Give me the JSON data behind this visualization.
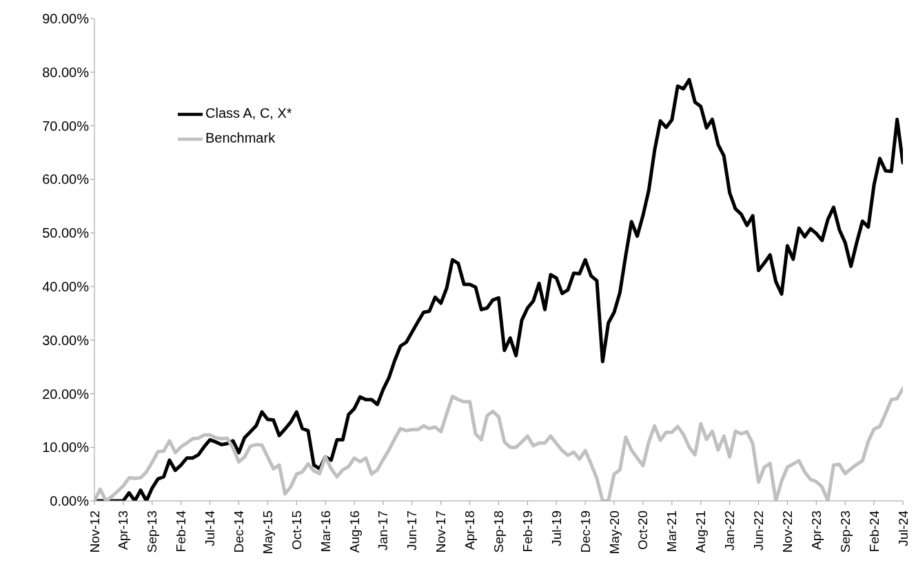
{
  "chart_data": {
    "type": "line",
    "categories": [
      "Nov-12",
      null,
      null,
      null,
      null,
      "Apr-13",
      null,
      null,
      null,
      null,
      "Sep-13",
      null,
      null,
      null,
      null,
      "Feb-14",
      null,
      null,
      null,
      null,
      "Jul-14",
      null,
      null,
      null,
      null,
      "Dec-14",
      null,
      null,
      null,
      null,
      "May-15",
      null,
      null,
      null,
      null,
      "Oct-15",
      null,
      null,
      null,
      null,
      "Mar-16",
      null,
      null,
      null,
      null,
      "Aug-16",
      null,
      null,
      null,
      null,
      "Jan-17",
      null,
      null,
      null,
      null,
      "Jun-17",
      null,
      null,
      null,
      null,
      "Nov-17",
      null,
      null,
      null,
      null,
      "Apr-18",
      null,
      null,
      null,
      null,
      "Sep-18",
      null,
      null,
      null,
      null,
      "Feb-19",
      null,
      null,
      null,
      null,
      "Jul-19",
      null,
      null,
      null,
      null,
      "Dec-19",
      null,
      null,
      null,
      null,
      "May-20",
      null,
      null,
      null,
      null,
      "Oct-20",
      null,
      null,
      null,
      null,
      "Mar-21",
      null,
      null,
      null,
      null,
      "Aug-21",
      null,
      null,
      null,
      null,
      "Jan-22",
      null,
      null,
      null,
      null,
      "Jun-22",
      null,
      null,
      null,
      null,
      "Nov-22",
      null,
      null,
      null,
      null,
      "Apr-23",
      null,
      null,
      null,
      null,
      "Sep-23",
      null,
      null,
      null,
      null,
      "Feb-24",
      null,
      null,
      null,
      null,
      "Jul-24"
    ],
    "series": [
      {
        "name": "Class A, C, X*",
        "color": "#000000",
        "values": [
          0,
          0,
          0,
          0,
          0,
          0,
          1.5,
          0,
          2,
          0,
          2.4,
          4.1,
          4.5,
          7.6,
          5.7,
          6.7,
          8,
          8,
          8.6,
          10.1,
          11.4,
          11,
          10.5,
          10.7,
          11.2,
          9,
          11.8,
          12.9,
          14,
          16.6,
          15.2,
          15.1,
          12.2,
          13.4,
          14.7,
          16.6,
          13.5,
          13.1,
          6.7,
          6,
          8.2,
          7.6,
          11.4,
          11.4,
          16.1,
          17.2,
          19.4,
          18.9,
          18.9,
          18,
          20.8,
          23,
          26.2,
          28.9,
          29.6,
          31.5,
          33.4,
          35.2,
          35.4,
          38,
          36.9,
          39.7,
          45,
          44.3,
          40.4,
          40.4,
          39.9,
          35.7,
          36,
          37.5,
          37.9,
          28.1,
          30.4,
          27.1,
          33.7,
          36,
          37.3,
          40.6,
          35.7,
          42.2,
          41.6,
          38.7,
          39.4,
          42.5,
          42.4,
          45,
          42,
          41.1,
          26,
          33.2,
          35.2,
          38.9,
          45.8,
          52.1,
          49.4,
          53.3,
          58,
          65.4,
          70.9,
          69.7,
          71.1,
          77.4,
          76.9,
          78.6,
          74.4,
          73.6,
          69.6,
          71.2,
          66.5,
          64.4,
          57.5,
          54.5,
          53.5,
          51.4,
          53.2,
          43,
          44.4,
          45.9,
          40.9,
          38.6,
          47.6,
          45.1,
          50.9,
          49.3,
          50.8,
          49.9,
          48.6,
          52.5,
          54.8,
          50.6,
          48.2,
          43.8,
          48.2,
          52.2,
          51.1,
          59,
          63.9,
          61.6,
          61.5,
          71.2,
          63.1
        ]
      },
      {
        "name": "Benchmark",
        "color": "#c0c0c0",
        "values": [
          0,
          2.2,
          0,
          0.8,
          1.8,
          2.8,
          4.3,
          4.2,
          4.3,
          5.4,
          7.2,
          9.2,
          9.3,
          11.2,
          9,
          10.1,
          10.8,
          11.6,
          11.7,
          12.3,
          12.3,
          11.8,
          11.6,
          11.7,
          9.9,
          7.3,
          8.2,
          10.2,
          10.5,
          10.4,
          8.2,
          6,
          6.7,
          1.3,
          2.6,
          5,
          5.4,
          6.9,
          5.6,
          5.1,
          8.2,
          6,
          4.5,
          5.8,
          6.4,
          8,
          7.3,
          8,
          5,
          5.8,
          7.7,
          9.5,
          11.6,
          13.5,
          13.1,
          13.3,
          13.3,
          14,
          13.5,
          13.8,
          12.9,
          16.3,
          19.5,
          18.9,
          18.5,
          18.5,
          12.5,
          11.4,
          15.9,
          16.7,
          15.7,
          11,
          10,
          10,
          11,
          12.1,
          10.3,
          10.8,
          10.8,
          12.1,
          10.7,
          9.4,
          8.5,
          9.1,
          7.8,
          9.4,
          6.9,
          4.2,
          0,
          0,
          5,
          5.8,
          11.9,
          9.5,
          8,
          6.6,
          11,
          14,
          11.3,
          12.8,
          12.8,
          13.9,
          12.4,
          10,
          8.6,
          14.4,
          11.5,
          13,
          9.5,
          12.1,
          8.2,
          13,
          12.5,
          12.9,
          10.7,
          3.5,
          6.3,
          7,
          0,
          3.7,
          6.3,
          6.9,
          7.5,
          5.4,
          4,
          3.6,
          2.6,
          0,
          6.7,
          6.8,
          5.1,
          6,
          6.8,
          7.5,
          11.1,
          13.4,
          13.9,
          16.3,
          18.9,
          19.1,
          21
        ]
      }
    ],
    "ylim": [
      0,
      90
    ],
    "yticks": [
      {
        "value": 0,
        "label": "0.00%"
      },
      {
        "value": 10,
        "label": "10.00%"
      },
      {
        "value": 20,
        "label": "20.00%"
      },
      {
        "value": 30,
        "label": "30.00%"
      },
      {
        "value": 40,
        "label": "40.00%"
      },
      {
        "value": 50,
        "label": "50.00%"
      },
      {
        "value": 60,
        "label": "60.00%"
      },
      {
        "value": 70,
        "label": "70.00%"
      },
      {
        "value": 80,
        "label": "80.00%"
      },
      {
        "value": 90,
        "label": "90.00%"
      }
    ],
    "grid": false,
    "legend": "top left",
    "line_style": "solid"
  }
}
